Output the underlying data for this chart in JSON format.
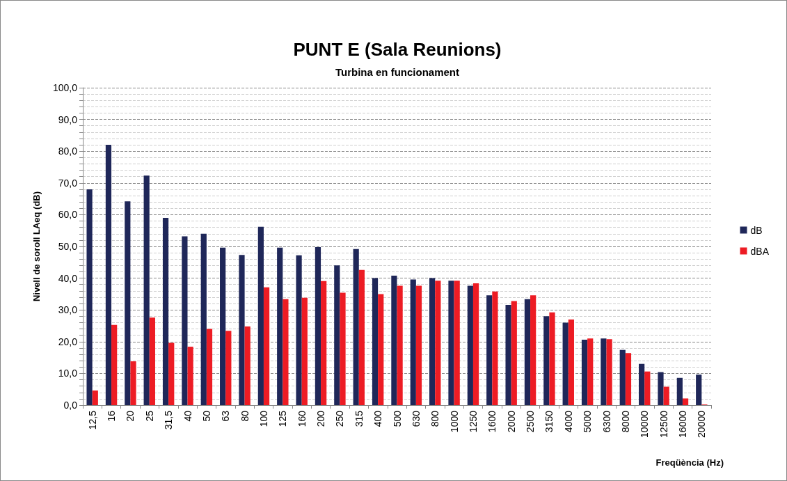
{
  "chart_data": {
    "type": "bar",
    "title": "PUNT E (Sala Reunions)",
    "subtitle": "Turbina en funcionament",
    "xlabel": "Freqüència (Hz)",
    "ylabel": "Nivell de soroll LAeq (dB)",
    "categories": [
      "12,5",
      "16",
      "20",
      "25",
      "31,5",
      "40",
      "50",
      "63",
      "80",
      "100",
      "125",
      "160",
      "200",
      "250",
      "315",
      "400",
      "500",
      "630",
      "800",
      "1000",
      "1250",
      "1600",
      "2000",
      "2500",
      "3150",
      "4000",
      "5000",
      "6300",
      "8000",
      "10000",
      "12500",
      "16000",
      "20000"
    ],
    "series": [
      {
        "name": "dB",
        "color": "#1f2759",
        "values": [
          68.0,
          82.0,
          64.2,
          72.3,
          59.0,
          53.2,
          54.0,
          49.6,
          47.3,
          56.2,
          49.6,
          47.2,
          49.8,
          44.0,
          49.2,
          40.0,
          40.8,
          39.6,
          40.0,
          39.2,
          37.6,
          34.6,
          31.6,
          33.4,
          28.0,
          26.0,
          20.6,
          21.0,
          17.4,
          13.0,
          10.4,
          8.6,
          9.6
        ]
      },
      {
        "name": "dBA",
        "color": "#ed1c24",
        "values": [
          4.6,
          25.3,
          13.8,
          27.6,
          19.6,
          18.4,
          24.0,
          23.4,
          24.8,
          37.1,
          33.4,
          33.8,
          39.1,
          35.4,
          42.6,
          35.0,
          37.6,
          37.6,
          39.2,
          39.2,
          38.4,
          35.8,
          32.8,
          34.6,
          29.2,
          27.0,
          21.0,
          20.8,
          16.4,
          10.6,
          5.8,
          2.1,
          0.2
        ]
      }
    ],
    "ylim": [
      0,
      100
    ],
    "yticks": [
      {
        "value": 0,
        "label": "0,0"
      },
      {
        "value": 2,
        "label": null
      },
      {
        "value": 4,
        "label": null
      },
      {
        "value": 6,
        "label": null
      },
      {
        "value": 8,
        "label": null
      },
      {
        "value": 10,
        "label": "10,0"
      },
      {
        "value": 12,
        "label": null
      },
      {
        "value": 14,
        "label": null
      },
      {
        "value": 16,
        "label": null
      },
      {
        "value": 18,
        "label": null
      },
      {
        "value": 20,
        "label": "20,0"
      },
      {
        "value": 22,
        "label": null
      },
      {
        "value": 24,
        "label": null
      },
      {
        "value": 26,
        "label": null
      },
      {
        "value": 28,
        "label": null
      },
      {
        "value": 30,
        "label": "30,0"
      },
      {
        "value": 32,
        "label": null
      },
      {
        "value": 34,
        "label": null
      },
      {
        "value": 36,
        "label": null
      },
      {
        "value": 38,
        "label": null
      },
      {
        "value": 40,
        "label": "40,0"
      },
      {
        "value": 42,
        "label": null
      },
      {
        "value": 44,
        "label": null
      },
      {
        "value": 46,
        "label": null
      },
      {
        "value": 48,
        "label": null
      },
      {
        "value": 50,
        "label": "50,0"
      },
      {
        "value": 52,
        "label": null
      },
      {
        "value": 54,
        "label": null
      },
      {
        "value": 56,
        "label": null
      },
      {
        "value": 58,
        "label": null
      },
      {
        "value": 60,
        "label": "60,0"
      },
      {
        "value": 62,
        "label": null
      },
      {
        "value": 64,
        "label": null
      },
      {
        "value": 66,
        "label": null
      },
      {
        "value": 68,
        "label": null
      },
      {
        "value": 70,
        "label": "70,0"
      },
      {
        "value": 72,
        "label": null
      },
      {
        "value": 74,
        "label": null
      },
      {
        "value": 76,
        "label": null
      },
      {
        "value": 78,
        "label": null
      },
      {
        "value": 80,
        "label": "80,0"
      },
      {
        "value": 82,
        "label": null
      },
      {
        "value": 84,
        "label": null
      },
      {
        "value": 86,
        "label": null
      },
      {
        "value": 88,
        "label": null
      },
      {
        "value": 90,
        "label": "90,0"
      },
      {
        "value": 92,
        "label": null
      },
      {
        "value": 94,
        "label": null
      },
      {
        "value": 96,
        "label": null
      },
      {
        "value": 98,
        "label": null
      },
      {
        "value": 100,
        "label": "100,0"
      }
    ],
    "grid": "y",
    "legend": "right"
  }
}
